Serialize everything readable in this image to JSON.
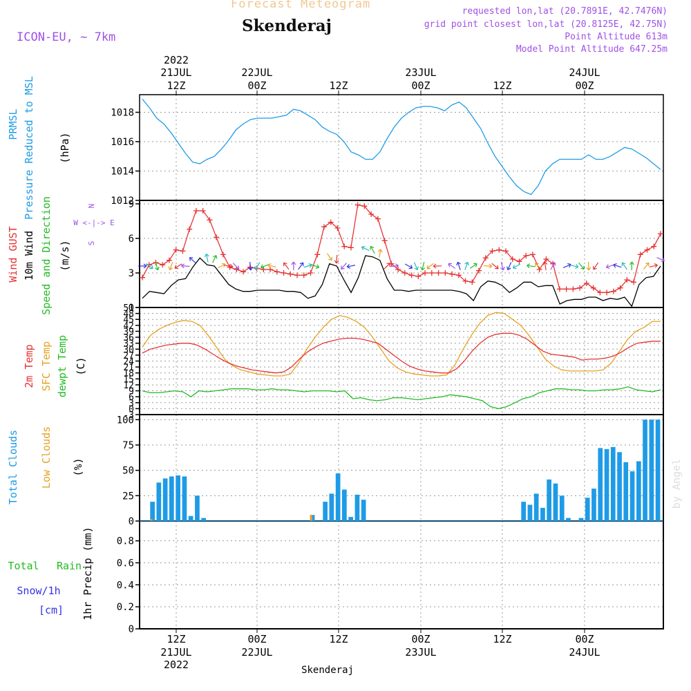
{
  "header": {
    "product": "Forecast Meteogram",
    "location": "Skenderaj",
    "model": "ICON-EU, ~ 7km",
    "requested": "requested lon,lat (20.7891E, 42.7476N)",
    "grid_point": "grid point closest lon,lat (20.8125E, 42.75N)",
    "point_altitude": "Point Altitude 613m",
    "model_altitude": "Model Point Altitude 647.25m",
    "footer": "Skenderaj",
    "watermark": "by Angel"
  },
  "colors": {
    "pressure": "#1e9be6",
    "gust": "#e63232",
    "wind": "#000000",
    "direction": "#22bb22",
    "t2m": "#e63232",
    "sfc": "#e6a020",
    "dewpoint": "#22bb22",
    "total_clouds": "#1e9be6",
    "low_clouds": "#e6a020",
    "rain": "#22bb22",
    "snow": "#3232e6",
    "compass": "#a050e6",
    "header_product": "#f0c890",
    "header_info": "#a050e6"
  },
  "time_axis": {
    "top_labels": [
      {
        "time": "12Z",
        "date": "21JUL",
        "year": "2022"
      },
      {
        "time": "00Z",
        "date": "22JUL"
      },
      {
        "time": "12Z"
      },
      {
        "time": "00Z",
        "date": "23JUL"
      },
      {
        "time": "12Z"
      },
      {
        "time": "00Z",
        "date": "24JUL"
      }
    ],
    "bottom_labels": [
      {
        "time": "12Z",
        "date": "21JUL",
        "year": "2022"
      },
      {
        "time": "00Z",
        "date": "22JUL"
      },
      {
        "time": "12Z"
      },
      {
        "time": "00Z",
        "date": "23JUL"
      },
      {
        "time": "12Z"
      },
      {
        "time": "00Z",
        "date": "24JUL"
      }
    ]
  },
  "panel_labels": {
    "pressure": [
      "PRMSL",
      "Pressure Reduced to MSL",
      "(hPa)"
    ],
    "wind": [
      "Wind GUST",
      "10m Wind",
      "Speed and Direction",
      "(m/s)"
    ],
    "compass": [
      "N",
      "W <-|-> E",
      "S"
    ],
    "temp": [
      "2m Temp",
      "SFC Temp",
      "dewpt Temp",
      "(C)"
    ],
    "clouds": [
      "Total Clouds",
      "Low Clouds",
      "(%)"
    ],
    "precip": [
      "Total",
      "Rain",
      "Snow/1h",
      "[cm]",
      "1hr Precip (mm)"
    ]
  },
  "chart_data": [
    {
      "type": "line",
      "name": "PRMSL",
      "ylabel": "(hPa)",
      "ylim": [
        1012,
        1019.2
      ],
      "yticks": [
        "1012",
        "1014",
        "1016",
        "1018"
      ],
      "series": [
        {
          "name": "PRMSL",
          "values": [
            1018.9,
            1018.3,
            1017.6,
            1017.2,
            1016.6,
            1015.9,
            1015.2,
            1014.6,
            1014.5,
            1014.8,
            1015.0,
            1015.5,
            1016.1,
            1016.8,
            1017.2,
            1017.5,
            1017.6,
            1017.6,
            1017.6,
            1017.7,
            1017.8,
            1018.2,
            1018.1,
            1017.8,
            1017.5,
            1017.0,
            1016.7,
            1016.5,
            1016.0,
            1015.3,
            1015.1,
            1014.8,
            1014.8,
            1015.3,
            1016.2,
            1017.0,
            1017.6,
            1018.0,
            1018.3,
            1018.4,
            1018.4,
            1018.3,
            1018.1,
            1018.5,
            1018.7,
            1018.3,
            1017.6,
            1016.9,
            1015.9,
            1015.0,
            1014.3,
            1013.6,
            1013.0,
            1012.6,
            1012.4,
            1013.0,
            1014.0,
            1014.5,
            1014.8,
            1014.8,
            1014.8,
            1014.8,
            1015.1,
            1014.8,
            1014.8,
            1015.0,
            1015.3,
            1015.6,
            1015.5,
            1015.2,
            1014.9,
            1014.5,
            1014.1
          ]
        }
      ]
    },
    {
      "type": "line",
      "name": "Wind",
      "ylabel": "(m/s)",
      "ylim": [
        0,
        9.3
      ],
      "yticks": [
        "0",
        "3",
        "6",
        "9"
      ],
      "series": [
        {
          "name": "Wind GUST",
          "values": [
            2.6,
            3.7,
            3.9,
            3.7,
            4.1,
            5.0,
            4.9,
            6.8,
            8.4,
            8.4,
            7.6,
            6.1,
            4.6,
            3.5,
            3.3,
            3.1,
            3.5,
            3.4,
            3.3,
            3.3,
            3.1,
            3.0,
            2.9,
            2.8,
            2.8,
            3.0,
            4.6,
            7.0,
            7.4,
            6.9,
            5.3,
            5.2,
            8.9,
            8.8,
            8.1,
            7.7,
            5.8,
            3.8,
            3.3,
            3.0,
            2.8,
            2.7,
            3.0,
            3.0,
            3.0,
            3.0,
            2.9,
            2.8,
            2.3,
            2.2,
            3.2,
            4.3,
            4.9,
            5.0,
            4.9,
            4.2,
            4.0,
            4.5,
            4.6,
            3.3,
            4.2,
            3.8,
            1.6,
            1.6,
            1.6,
            1.7,
            2.1,
            1.7,
            1.3,
            1.3,
            1.4,
            1.7,
            2.4,
            2.2,
            4.6,
            5.0,
            5.3,
            6.4
          ]
        },
        {
          "name": "10m Wind",
          "values": [
            0.8,
            1.4,
            1.3,
            1.2,
            1.9,
            2.4,
            2.5,
            3.5,
            4.3,
            3.7,
            3.6,
            2.8,
            2.0,
            1.6,
            1.4,
            1.4,
            1.5,
            1.5,
            1.5,
            1.5,
            1.4,
            1.4,
            1.3,
            0.8,
            1.0,
            2.0,
            3.8,
            3.6,
            2.4,
            1.3,
            2.6,
            4.5,
            4.4,
            4.1,
            2.5,
            1.5,
            1.5,
            1.4,
            1.5,
            1.5,
            1.5,
            1.5,
            1.5,
            1.5,
            1.4,
            1.2,
            0.6,
            1.8,
            2.3,
            2.2,
            1.9,
            1.3,
            1.7,
            2.2,
            2.2,
            1.8,
            1.9,
            1.9,
            0.3,
            0.6,
            0.7,
            0.7,
            0.9,
            0.9,
            0.6,
            0.8,
            0.7,
            0.9,
            0.1,
            2.0,
            2.6,
            2.7,
            3.6
          ]
        }
      ]
    },
    {
      "type": "line",
      "name": "Temperature",
      "ylabel": "(C)",
      "ylim": [
        -3,
        51
      ],
      "yticks": [
        "-3",
        "0",
        "3",
        "6",
        "9",
        "12",
        "15",
        "18",
        "21",
        "24",
        "27",
        "30",
        "33",
        "36",
        "39",
        "42",
        "45",
        "48",
        "51"
      ],
      "series": [
        {
          "name": "2m Temp",
          "values": [
            28,
            30,
            31,
            32,
            32.5,
            33,
            33,
            32,
            30,
            27.5,
            25,
            23,
            21.5,
            20.5,
            19.5,
            19,
            18.5,
            18,
            18.5,
            21,
            25,
            28.5,
            31,
            33,
            34,
            35,
            35.5,
            35.5,
            35,
            34,
            33,
            30,
            27,
            24,
            21.5,
            20,
            19,
            18.5,
            18,
            18,
            20,
            24,
            29,
            33,
            36,
            37.5,
            38,
            38,
            37,
            35,
            32,
            29,
            27.5,
            27,
            26.5,
            26,
            24.5,
            25,
            25,
            25.5,
            26.5,
            28.5,
            31,
            33,
            33.5,
            34,
            34
          ]
        },
        {
          "name": "SFC Temp",
          "values": [
            31,
            37,
            40,
            42,
            43.5,
            44.5,
            44,
            42,
            37,
            31,
            25,
            21.5,
            19.5,
            18.5,
            17.5,
            17,
            16.5,
            16.5,
            17.5,
            23,
            30,
            36,
            41,
            45,
            47,
            46,
            44,
            41,
            36,
            30,
            24,
            20.5,
            18.5,
            17.5,
            17,
            16.5,
            16.5,
            17,
            22,
            30,
            37,
            43,
            47,
            48.5,
            48,
            45,
            42,
            37,
            31,
            25,
            21.5,
            19.5,
            19,
            19,
            19,
            19,
            19.5,
            23,
            29,
            35,
            39,
            41,
            44,
            44
          ]
        },
        {
          "name": "dewpt Temp",
          "values": [
            9,
            8,
            8,
            8.5,
            9,
            8.5,
            6,
            9,
            8.5,
            9,
            9.5,
            10,
            10,
            10,
            9.5,
            9.5,
            10,
            9.5,
            9.5,
            9,
            8.5,
            9,
            9,
            9,
            8.5,
            9,
            5,
            5.5,
            4.5,
            4,
            4.5,
            5.5,
            5.5,
            5,
            4.5,
            5,
            5.5,
            6,
            7,
            6.5,
            6,
            5,
            4,
            1,
            0,
            1,
            3,
            5,
            6,
            8,
            9,
            10,
            10,
            9.5,
            9.5,
            9,
            9,
            9.5,
            9.5,
            10,
            11,
            9.5,
            9,
            8.5,
            9.5
          ]
        }
      ]
    },
    {
      "type": "bar",
      "name": "Clouds",
      "ylabel": "(%)",
      "ylim": [
        0,
        105
      ],
      "yticks": [
        "0",
        "25",
        "50",
        "75",
        "100"
      ],
      "series": [
        {
          "name": "Total Clouds",
          "values": [
            0,
            19,
            38,
            42,
            44,
            45,
            44,
            5,
            25,
            3,
            0,
            0,
            0,
            0,
            0,
            0,
            0,
            0,
            0,
            0,
            0,
            0,
            0,
            0,
            0,
            0,
            6,
            0,
            19,
            27,
            47,
            31,
            4,
            26,
            21,
            0,
            0,
            0,
            0,
            0,
            0,
            0,
            0,
            0,
            0,
            0,
            0,
            0,
            0,
            0,
            0,
            0,
            0,
            0,
            0,
            0,
            0,
            0,
            0,
            19,
            16,
            27,
            13,
            41,
            37,
            25,
            3,
            0,
            3,
            23,
            32,
            72,
            71,
            73,
            68,
            58,
            49,
            59,
            100,
            100,
            100
          ]
        },
        {
          "name": "Low Clouds",
          "values": [
            0,
            2,
            0,
            0,
            0,
            0,
            0,
            0,
            0,
            0,
            0,
            0,
            0,
            0,
            0,
            0,
            0,
            0,
            0,
            0,
            0,
            0,
            0,
            0,
            0,
            0,
            6,
            0,
            0,
            0,
            0,
            0,
            0,
            0,
            0,
            0,
            0,
            0,
            0,
            0,
            0,
            0,
            0,
            0,
            0,
            0,
            0,
            0,
            0,
            0,
            0,
            0,
            0,
            0,
            0,
            0,
            0,
            0,
            0,
            0,
            0,
            0,
            0,
            0,
            0,
            0,
            0,
            0,
            0,
            0,
            0,
            0,
            0,
            0,
            0,
            0,
            0,
            0,
            0,
            0,
            0
          ]
        }
      ]
    },
    {
      "type": "bar",
      "name": "Precipitation",
      "ylabel": "1hr Precip (mm)",
      "ylim": [
        0,
        0.98
      ],
      "yticks": [
        "0",
        "0.2",
        "0.4",
        "0.6",
        "0.8"
      ],
      "series": [
        {
          "name": "Total Rain",
          "values": []
        },
        {
          "name": "Snow/1h",
          "values": []
        }
      ]
    }
  ]
}
